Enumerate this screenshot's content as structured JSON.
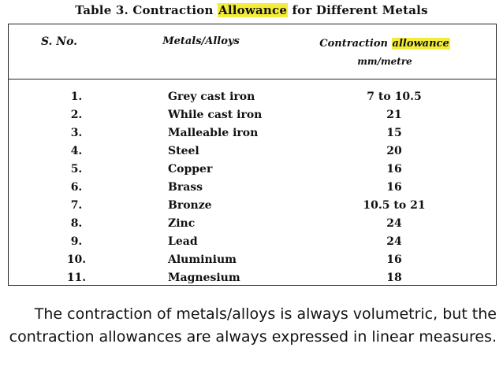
{
  "title": {
    "prefix": "Table 3. Contraction ",
    "highlight": "Allowance",
    "suffix": " for Different Metals"
  },
  "header": {
    "sno": "S. No.",
    "metal": "Metals/Alloys",
    "allowance_prefix": "Contraction ",
    "allowance_highlight": "allowance",
    "unit": "mm/metre"
  },
  "rows": [
    {
      "sno": "1.",
      "metal": "Grey cast iron",
      "allowance": "7 to 10.5"
    },
    {
      "sno": "2.",
      "metal": "While cast iron",
      "allowance": "21"
    },
    {
      "sno": "3.",
      "metal": "Malleable iron",
      "allowance": "15"
    },
    {
      "sno": "4.",
      "metal": "Steel",
      "allowance": "20"
    },
    {
      "sno": "5.",
      "metal": "Copper",
      "allowance": "16"
    },
    {
      "sno": "6.",
      "metal": "Brass",
      "allowance": "16"
    },
    {
      "sno": "7.",
      "metal": "Bronze",
      "allowance": "10.5 to 21"
    },
    {
      "sno": "8.",
      "metal": "Zinc",
      "allowance": "24"
    },
    {
      "sno": "9.",
      "metal": "Lead",
      "allowance": "24"
    },
    {
      "sno": "10.",
      "metal": "Aluminium",
      "allowance": "16"
    },
    {
      "sno": "11.",
      "metal": "Magnesium",
      "allowance": "18"
    }
  ],
  "caption": "The contraction of metals/alloys is always volumetric, but the contraction allowances are always expressed in linear measures.",
  "colors": {
    "highlight": "#f3ec3b"
  }
}
